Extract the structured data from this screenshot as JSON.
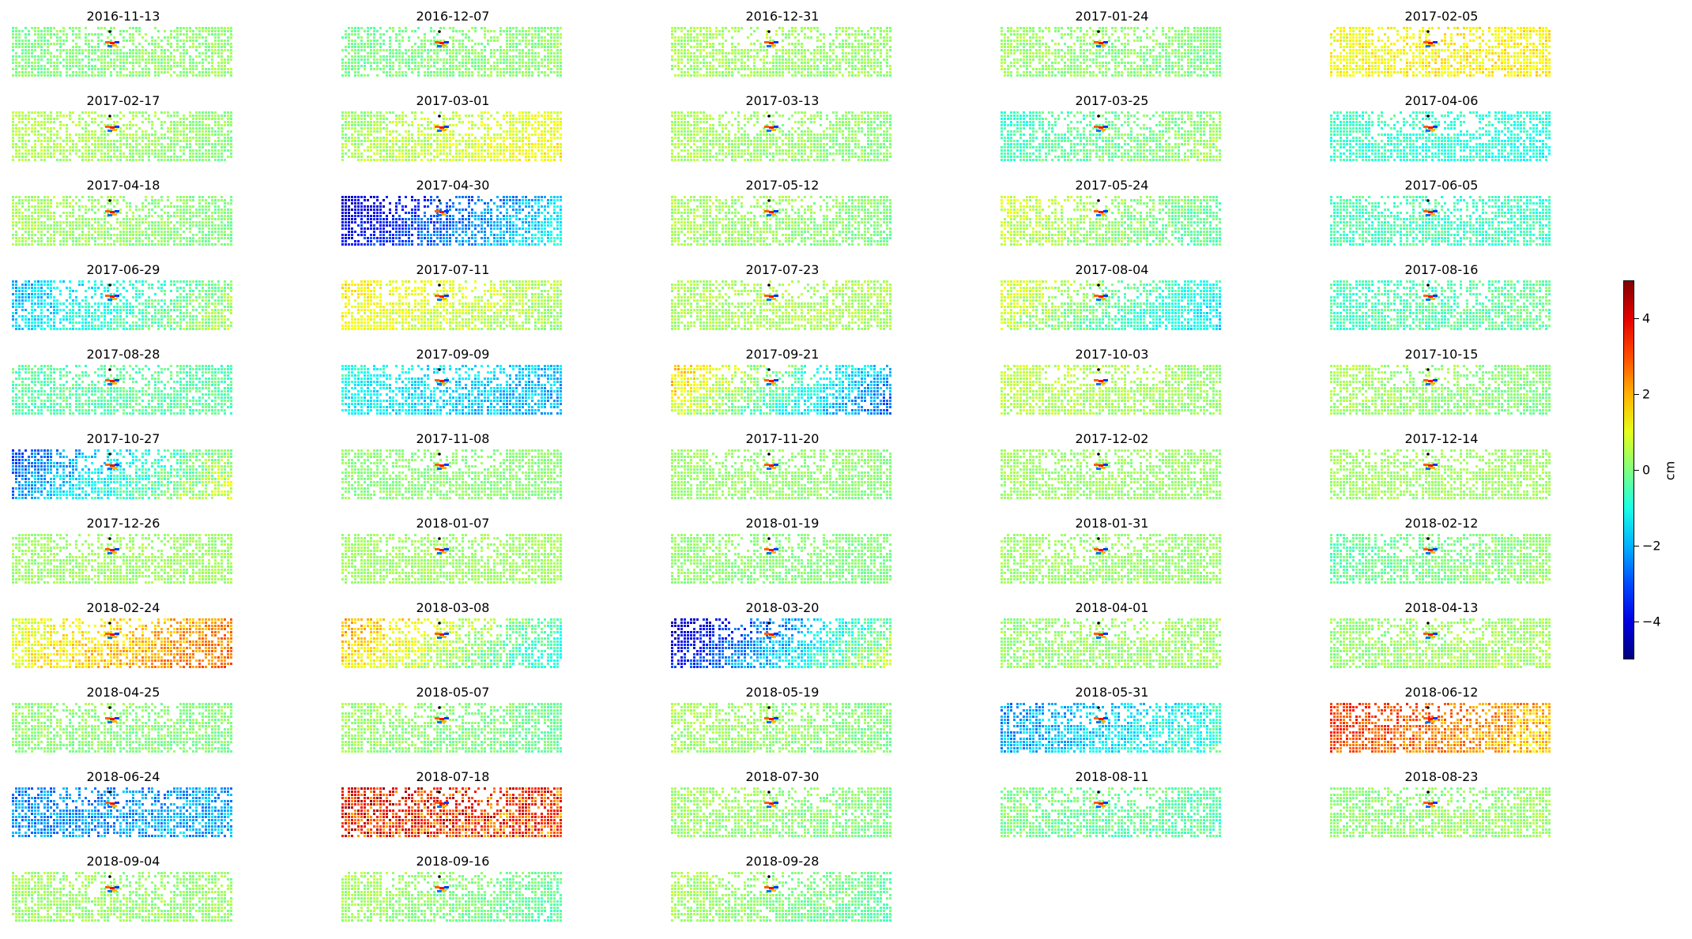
{
  "chart_data": {
    "type": "heatmap",
    "title": "",
    "colormap": "jet",
    "value_range": [
      -5,
      5
    ],
    "layout": {
      "columns": 5,
      "rows": 11
    },
    "colorbar": {
      "label": "cm",
      "ticks": [
        {
          "value": 4,
          "label": "4"
        },
        {
          "value": 2,
          "label": "2"
        },
        {
          "value": 0,
          "label": "0"
        },
        {
          "value": -2,
          "label": "−2"
        },
        {
          "value": -4,
          "label": "−4"
        }
      ]
    },
    "panels": [
      {
        "date": "2016-11-13",
        "west": 0.0,
        "east": 0.2,
        "spread": 0.4
      },
      {
        "date": "2016-12-07",
        "west": -0.1,
        "east": 0.2,
        "spread": 0.4
      },
      {
        "date": "2016-12-31",
        "west": 0.4,
        "east": 0.2,
        "spread": 0.4
      },
      {
        "date": "2017-01-24",
        "west": 0.3,
        "east": 0.0,
        "spread": 0.4
      },
      {
        "date": "2017-02-05",
        "west": 1.2,
        "east": 1.4,
        "spread": 0.5
      },
      {
        "date": "2017-02-17",
        "west": 0.5,
        "east": 0.1,
        "spread": 0.4
      },
      {
        "date": "2017-03-01",
        "west": 0.3,
        "east": 1.2,
        "spread": 0.5
      },
      {
        "date": "2017-03-13",
        "west": 0.4,
        "east": 0.1,
        "spread": 0.4
      },
      {
        "date": "2017-03-25",
        "west": -0.6,
        "east": 0.3,
        "spread": 0.5
      },
      {
        "date": "2017-04-06",
        "west": -0.6,
        "east": -1.0,
        "spread": 0.5
      },
      {
        "date": "2017-04-18",
        "west": 0.4,
        "east": 0.0,
        "spread": 0.4
      },
      {
        "date": "2017-04-30",
        "west": -4.0,
        "east": -1.3,
        "spread": 0.6
      },
      {
        "date": "2017-05-12",
        "west": 0.4,
        "east": 0.0,
        "spread": 0.4
      },
      {
        "date": "2017-05-24",
        "west": 0.7,
        "east": -0.3,
        "spread": 0.5
      },
      {
        "date": "2017-06-05",
        "west": -0.5,
        "east": -0.6,
        "spread": 0.5
      },
      {
        "date": "2017-06-29",
        "west": -1.8,
        "east": 0.3,
        "spread": 0.6
      },
      {
        "date": "2017-07-11",
        "west": 1.3,
        "east": 0.3,
        "spread": 0.5
      },
      {
        "date": "2017-07-23",
        "west": 0.4,
        "east": 0.4,
        "spread": 0.4
      },
      {
        "date": "2017-08-04",
        "west": 0.8,
        "east": -1.3,
        "spread": 0.6
      },
      {
        "date": "2017-08-16",
        "west": -0.6,
        "east": -0.2,
        "spread": 0.5
      },
      {
        "date": "2017-08-28",
        "west": -0.4,
        "east": -0.3,
        "spread": 0.5
      },
      {
        "date": "2017-09-09",
        "west": -1.1,
        "east": -2.0,
        "spread": 0.6
      },
      {
        "date": "2017-09-21",
        "west": 1.4,
        "east": -2.4,
        "spread": 0.7
      },
      {
        "date": "2017-10-03",
        "west": 0.6,
        "east": 0.2,
        "spread": 0.4
      },
      {
        "date": "2017-10-15",
        "west": 0.4,
        "east": 0.0,
        "spread": 0.4
      },
      {
        "date": "2017-10-27",
        "west": -2.6,
        "east": 0.6,
        "spread": 0.7
      },
      {
        "date": "2017-11-08",
        "west": 0.1,
        "east": 0.1,
        "spread": 0.3
      },
      {
        "date": "2017-11-20",
        "west": 0.3,
        "east": 0.1,
        "spread": 0.3
      },
      {
        "date": "2017-12-02",
        "west": 0.3,
        "east": 0.2,
        "spread": 0.3
      },
      {
        "date": "2017-12-14",
        "west": 0.3,
        "east": 0.3,
        "spread": 0.3
      },
      {
        "date": "2017-12-26",
        "west": 0.3,
        "east": 0.3,
        "spread": 0.3
      },
      {
        "date": "2018-01-07",
        "west": 0.3,
        "east": 0.3,
        "spread": 0.3
      },
      {
        "date": "2018-01-19",
        "west": 0.2,
        "east": 0.0,
        "spread": 0.3
      },
      {
        "date": "2018-01-31",
        "west": 0.3,
        "east": 0.2,
        "spread": 0.3
      },
      {
        "date": "2018-02-12",
        "west": -0.3,
        "east": 0.2,
        "spread": 0.4
      },
      {
        "date": "2018-02-24",
        "west": 1.0,
        "east": 2.6,
        "spread": 0.6
      },
      {
        "date": "2018-03-08",
        "west": 1.8,
        "east": -0.8,
        "spread": 0.6
      },
      {
        "date": "2018-03-20",
        "west": -4.0,
        "east": 0.3,
        "spread": 0.7
      },
      {
        "date": "2018-04-01",
        "west": 0.2,
        "east": 0.3,
        "spread": 0.4
      },
      {
        "date": "2018-04-13",
        "west": 0.2,
        "east": 0.4,
        "spread": 0.4
      },
      {
        "date": "2018-04-25",
        "west": 0.2,
        "east": 0.0,
        "spread": 0.4
      },
      {
        "date": "2018-05-07",
        "west": 0.3,
        "east": -0.2,
        "spread": 0.4
      },
      {
        "date": "2018-05-19",
        "west": 0.4,
        "east": 0.0,
        "spread": 0.4
      },
      {
        "date": "2018-05-31",
        "west": -2.2,
        "east": -0.8,
        "spread": 0.7
      },
      {
        "date": "2018-06-12",
        "west": 3.2,
        "east": 1.8,
        "spread": 0.7
      },
      {
        "date": "2018-06-24",
        "west": -2.4,
        "east": -2.0,
        "spread": 0.7
      },
      {
        "date": "2018-07-18",
        "west": 3.6,
        "east": 3.0,
        "spread": 1.4
      },
      {
        "date": "2018-07-30",
        "west": 0.3,
        "east": 0.0,
        "spread": 0.4
      },
      {
        "date": "2018-08-11",
        "west": 0.0,
        "east": -0.4,
        "spread": 0.5
      },
      {
        "date": "2018-08-23",
        "west": 0.1,
        "east": 0.3,
        "spread": 0.4
      },
      {
        "date": "2018-09-04",
        "west": 0.3,
        "east": 0.2,
        "spread": 0.4
      },
      {
        "date": "2018-09-16",
        "west": 0.4,
        "east": -0.3,
        "spread": 0.4
      },
      {
        "date": "2018-09-28",
        "west": 0.4,
        "east": -0.3,
        "spread": 0.4
      }
    ]
  }
}
